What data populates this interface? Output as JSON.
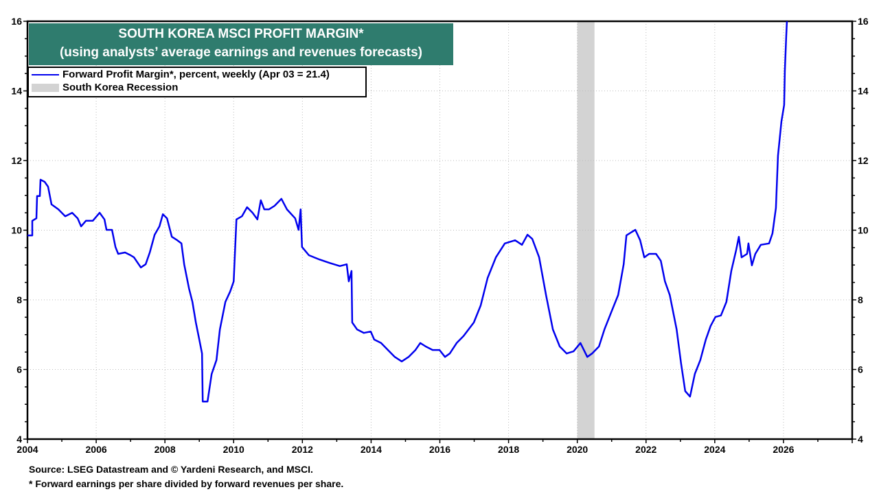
{
  "chart_data": {
    "type": "line",
    "title": "SOUTH KOREA MSCI PROFIT MARGIN*",
    "subtitle": "(using analysts’ average earnings and revenues forecasts)",
    "xlim": [
      2004,
      2028
    ],
    "ylim": [
      4,
      16
    ],
    "x_ticks": [
      "2004",
      "2006",
      "2008",
      "2010",
      "2012",
      "2014",
      "2016",
      "2018",
      "2020",
      "2022",
      "2024",
      "2026"
    ],
    "y_ticks": [
      "4",
      "6",
      "8",
      "10",
      "12",
      "14",
      "16"
    ],
    "grid": true,
    "legend_placement": "top-left",
    "legend": {
      "series_label": "Forward Profit Margin*, percent, weekly (Apr 03 = 21.4)",
      "recession_label": "South Korea Recession"
    },
    "recessions": [
      [
        2020.0,
        2020.5
      ]
    ],
    "colors": {
      "series": "#0000ee",
      "recession": "#d3d3d3",
      "title_bg": "#2f7c6e"
    },
    "series": [
      {
        "name": "Forward Profit Margin*, percent, weekly (Apr 03 = 21.4)",
        "points": [
          [
            2004.0,
            9.85
          ],
          [
            2004.14,
            9.85
          ],
          [
            2004.14,
            10.27
          ],
          [
            2004.26,
            10.34
          ],
          [
            2004.28,
            10.98
          ],
          [
            2004.36,
            10.98
          ],
          [
            2004.38,
            11.45
          ],
          [
            2004.5,
            11.39
          ],
          [
            2004.6,
            11.25
          ],
          [
            2004.7,
            10.74
          ],
          [
            2004.9,
            10.6
          ],
          [
            2005.1,
            10.4
          ],
          [
            2005.3,
            10.5
          ],
          [
            2005.46,
            10.34
          ],
          [
            2005.56,
            10.11
          ],
          [
            2005.7,
            10.27
          ],
          [
            2005.9,
            10.27
          ],
          [
            2006.1,
            10.5
          ],
          [
            2006.24,
            10.31
          ],
          [
            2006.3,
            10.01
          ],
          [
            2006.46,
            10.01
          ],
          [
            2006.56,
            9.52
          ],
          [
            2006.64,
            9.32
          ],
          [
            2006.84,
            9.36
          ],
          [
            2007.0,
            9.28
          ],
          [
            2007.1,
            9.22
          ],
          [
            2007.3,
            8.93
          ],
          [
            2007.44,
            9.02
          ],
          [
            2007.56,
            9.36
          ],
          [
            2007.7,
            9.87
          ],
          [
            2007.84,
            10.11
          ],
          [
            2007.94,
            10.46
          ],
          [
            2008.06,
            10.34
          ],
          [
            2008.2,
            9.81
          ],
          [
            2008.36,
            9.71
          ],
          [
            2008.48,
            9.62
          ],
          [
            2008.56,
            9.02
          ],
          [
            2008.7,
            8.33
          ],
          [
            2008.8,
            7.94
          ],
          [
            2008.9,
            7.35
          ],
          [
            2009.0,
            6.86
          ],
          [
            2009.08,
            6.46
          ],
          [
            2009.1,
            5.08
          ],
          [
            2009.24,
            5.08
          ],
          [
            2009.36,
            5.87
          ],
          [
            2009.5,
            6.27
          ],
          [
            2009.6,
            7.15
          ],
          [
            2009.76,
            7.94
          ],
          [
            2009.9,
            8.24
          ],
          [
            2010.0,
            8.53
          ],
          [
            2010.08,
            10.31
          ],
          [
            2010.24,
            10.4
          ],
          [
            2010.39,
            10.66
          ],
          [
            2010.55,
            10.5
          ],
          [
            2010.69,
            10.31
          ],
          [
            2010.79,
            10.86
          ],
          [
            2010.89,
            10.6
          ],
          [
            2011.03,
            10.6
          ],
          [
            2011.19,
            10.7
          ],
          [
            2011.39,
            10.9
          ],
          [
            2011.55,
            10.6
          ],
          [
            2011.79,
            10.34
          ],
          [
            2011.89,
            10.01
          ],
          [
            2011.95,
            10.6
          ],
          [
            2011.99,
            9.52
          ],
          [
            2012.19,
            9.28
          ],
          [
            2012.49,
            9.16
          ],
          [
            2012.79,
            9.06
          ],
          [
            2013.09,
            8.97
          ],
          [
            2013.29,
            9.02
          ],
          [
            2013.35,
            8.53
          ],
          [
            2013.43,
            8.83
          ],
          [
            2013.45,
            7.35
          ],
          [
            2013.59,
            7.15
          ],
          [
            2013.79,
            7.05
          ],
          [
            2013.99,
            7.09
          ],
          [
            2014.09,
            6.86
          ],
          [
            2014.29,
            6.76
          ],
          [
            2014.49,
            6.56
          ],
          [
            2014.69,
            6.36
          ],
          [
            2014.89,
            6.23
          ],
          [
            2015.09,
            6.36
          ],
          [
            2015.29,
            6.56
          ],
          [
            2015.43,
            6.76
          ],
          [
            2015.59,
            6.66
          ],
          [
            2015.79,
            6.56
          ],
          [
            2015.99,
            6.56
          ],
          [
            2016.15,
            6.36
          ],
          [
            2016.29,
            6.46
          ],
          [
            2016.49,
            6.76
          ],
          [
            2016.69,
            6.96
          ],
          [
            2016.99,
            7.35
          ],
          [
            2017.19,
            7.84
          ],
          [
            2017.39,
            8.63
          ],
          [
            2017.63,
            9.22
          ],
          [
            2017.89,
            9.62
          ],
          [
            2018.19,
            9.71
          ],
          [
            2018.39,
            9.58
          ],
          [
            2018.55,
            9.87
          ],
          [
            2018.69,
            9.75
          ],
          [
            2018.89,
            9.22
          ],
          [
            2019.09,
            8.14
          ],
          [
            2019.29,
            7.15
          ],
          [
            2019.49,
            6.66
          ],
          [
            2019.69,
            6.46
          ],
          [
            2019.89,
            6.52
          ],
          [
            2020.09,
            6.76
          ],
          [
            2020.29,
            6.36
          ],
          [
            2020.43,
            6.46
          ],
          [
            2020.63,
            6.66
          ],
          [
            2020.79,
            7.15
          ],
          [
            2020.99,
            7.65
          ],
          [
            2021.19,
            8.14
          ],
          [
            2021.35,
            9.02
          ],
          [
            2021.43,
            9.85
          ],
          [
            2021.59,
            9.95
          ],
          [
            2021.69,
            10.01
          ],
          [
            2021.83,
            9.71
          ],
          [
            2021.95,
            9.22
          ],
          [
            2022.09,
            9.32
          ],
          [
            2022.29,
            9.32
          ],
          [
            2022.43,
            9.12
          ],
          [
            2022.55,
            8.53
          ],
          [
            2022.69,
            8.14
          ],
          [
            2022.89,
            7.15
          ],
          [
            2023.02,
            6.17
          ],
          [
            2023.14,
            5.38
          ],
          [
            2023.28,
            5.22
          ],
          [
            2023.42,
            5.87
          ],
          [
            2023.58,
            6.27
          ],
          [
            2023.74,
            6.86
          ],
          [
            2023.88,
            7.25
          ],
          [
            2024.02,
            7.51
          ],
          [
            2024.18,
            7.55
          ],
          [
            2024.34,
            7.94
          ],
          [
            2024.48,
            8.83
          ],
          [
            2024.62,
            9.42
          ],
          [
            2024.7,
            9.81
          ],
          [
            2024.78,
            9.22
          ],
          [
            2024.94,
            9.32
          ],
          [
            2024.98,
            9.62
          ],
          [
            2025.08,
            8.99
          ],
          [
            2025.18,
            9.32
          ],
          [
            2025.34,
            9.58
          ],
          [
            2025.58,
            9.62
          ],
          [
            2025.68,
            9.91
          ],
          [
            2025.78,
            10.64
          ],
          [
            2025.84,
            12.14
          ],
          [
            2025.94,
            13.12
          ],
          [
            2026.02,
            13.6
          ],
          [
            2026.04,
            14.58
          ],
          [
            2026.08,
            15.57
          ],
          [
            2026.1,
            16.0
          ]
        ]
      }
    ]
  },
  "footnotes": {
    "source": "Source: LSEG Datastream and © Yardeni Research, and MSCI.",
    "note": "* Forward earnings per share divided by forward revenues per share."
  }
}
